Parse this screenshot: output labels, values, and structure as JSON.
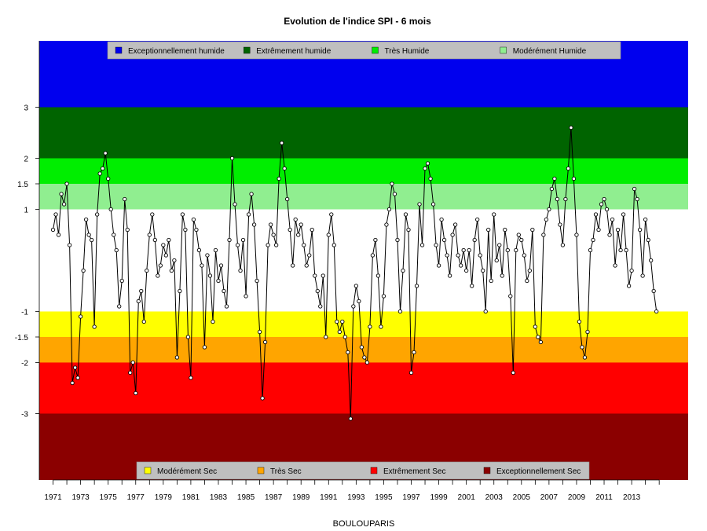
{
  "chart_data": {
    "type": "line",
    "title": "Evolution de l'indice SPI - 6 mois",
    "xlabel": "BOULOUPARIS",
    "ylabel": "",
    "xlim": [
      1970.0,
      2017.1
    ],
    "ylim": [
      -4.3,
      4.3
    ],
    "grid": false,
    "bands": [
      {
        "name": "Exceptionnellement humide",
        "from": 3.0,
        "to": 4.3,
        "color": "#0000EE"
      },
      {
        "name": "Extrêmement humide",
        "from": 2.0,
        "to": 3.0,
        "color": "#006400"
      },
      {
        "name": "Très Humide",
        "from": 1.5,
        "to": 2.0,
        "color": "#00EE00"
      },
      {
        "name": "Modérément Humide",
        "from": 1.0,
        "to": 1.5,
        "color": "#90EE90"
      },
      {
        "name": "",
        "from": -1.0,
        "to": 1.0,
        "color": "#FFFFFF"
      },
      {
        "name": "Modérément Sec",
        "from": -1.5,
        "to": -1.0,
        "color": "#FFFF00"
      },
      {
        "name": "Très Sec",
        "from": -2.0,
        "to": -1.5,
        "color": "#FFA500"
      },
      {
        "name": "Extrêmement Sec",
        "from": -3.0,
        "to": -2.0,
        "color": "#FF0000"
      },
      {
        "name": "Exceptionnellement Sec",
        "from": -4.3,
        "to": -3.0,
        "color": "#8B0000"
      }
    ],
    "legend_top": {
      "placement": "top",
      "entries": [
        {
          "label": "Exceptionnellement humide",
          "color": "#0000EE"
        },
        {
          "label": "Extrêmement humide",
          "color": "#006400"
        },
        {
          "label": "Très Humide",
          "color": "#00EE00"
        },
        {
          "label": "Modérément Humide",
          "color": "#90EE90"
        }
      ]
    },
    "legend_bottom": {
      "placement": "bottom",
      "entries": [
        {
          "label": "Modérément Sec",
          "color": "#FFFF00"
        },
        {
          "label": "Très Sec",
          "color": "#FFA500"
        },
        {
          "label": "Extrêmement Sec",
          "color": "#FF0000"
        },
        {
          "label": "Exceptionnellement Sec",
          "color": "#8B0000"
        }
      ]
    },
    "y_ticks": [
      {
        "value": 3,
        "label": "3"
      },
      {
        "value": 2,
        "label": "2"
      },
      {
        "value": 1.5,
        "label": "1.5"
      },
      {
        "value": 1,
        "label": "1"
      },
      {
        "value": -1,
        "label": "-1"
      },
      {
        "value": -1.5,
        "label": "-1.5"
      },
      {
        "value": -2,
        "label": "-2"
      },
      {
        "value": -3,
        "label": "-3"
      }
    ],
    "x_tick_values": [
      1971,
      1972,
      1973,
      1974,
      1975,
      1976,
      1977,
      1978,
      1979,
      1980,
      1981,
      1982,
      1983,
      1984,
      1985,
      1986,
      1987,
      1988,
      1989,
      1990,
      1991,
      1992,
      1993,
      1994,
      1995,
      1996,
      1997,
      1998,
      1999,
      2000,
      2001,
      2002,
      2003,
      2004,
      2005,
      2006,
      2007,
      2008,
      2009,
      2010,
      2011,
      2012,
      2013,
      2014,
      2015
    ],
    "x_tick_labels": [
      "1971",
      "1973",
      "1975",
      "1977",
      "1979",
      "1981",
      "1983",
      "1985",
      "1987",
      "1989",
      "1991",
      "1993",
      "1995",
      "1997",
      "1999",
      "2001",
      "2003",
      "2005",
      "2007",
      "2009",
      "2011",
      "2013"
    ],
    "series": [
      {
        "name": "",
        "color": "#000000",
        "marker": "open-circle",
        "x": [
          1971.0,
          1971.2,
          1971.4,
          1971.6,
          1971.8,
          1972.0,
          1972.2,
          1972.4,
          1972.6,
          1972.8,
          1973.0,
          1973.2,
          1973.4,
          1973.6,
          1973.8,
          1974.0,
          1974.2,
          1974.4,
          1974.6,
          1974.8,
          1975.0,
          1975.2,
          1975.4,
          1975.6,
          1975.8,
          1976.0,
          1976.2,
          1976.4,
          1976.6,
          1976.8,
          1977.0,
          1977.2,
          1977.4,
          1977.6,
          1977.8,
          1978.0,
          1978.2,
          1978.4,
          1978.6,
          1978.8,
          1979.0,
          1979.2,
          1979.4,
          1979.6,
          1979.8,
          1980.0,
          1980.2,
          1980.4,
          1980.6,
          1980.8,
          1981.0,
          1981.2,
          1981.4,
          1981.6,
          1981.8,
          1982.0,
          1982.2,
          1982.4,
          1982.6,
          1982.8,
          1983.0,
          1983.2,
          1983.4,
          1983.6,
          1983.8,
          1984.0,
          1984.2,
          1984.4,
          1984.6,
          1984.8,
          1985.0,
          1985.2,
          1985.4,
          1985.6,
          1985.8,
          1986.0,
          1986.2,
          1986.4,
          1986.6,
          1986.8,
          1987.0,
          1987.2,
          1987.4,
          1987.6,
          1987.8,
          1988.0,
          1988.2,
          1988.4,
          1988.6,
          1988.8,
          1989.0,
          1989.2,
          1989.4,
          1989.6,
          1989.8,
          1990.0,
          1990.2,
          1990.4,
          1990.6,
          1990.8,
          1991.0,
          1991.2,
          1991.4,
          1991.6,
          1991.8,
          1992.0,
          1992.2,
          1992.4,
          1992.6,
          1992.8,
          1993.0,
          1993.2,
          1993.4,
          1993.6,
          1993.8,
          1994.0,
          1994.2,
          1994.4,
          1994.6,
          1994.8,
          1995.0,
          1995.2,
          1995.4,
          1995.6,
          1995.8,
          1996.0,
          1996.2,
          1996.4,
          1996.6,
          1996.8,
          1997.0,
          1997.2,
          1997.4,
          1997.6,
          1997.8,
          1998.0,
          1998.2,
          1998.4,
          1998.6,
          1998.8,
          1999.0,
          1999.2,
          1999.4,
          1999.6,
          1999.8,
          2000.0,
          2000.2,
          2000.4,
          2000.6,
          2000.8,
          2001.0,
          2001.2,
          2001.4,
          2001.6,
          2001.8,
          2002.0,
          2002.2,
          2002.4,
          2002.6,
          2002.8,
          2003.0,
          2003.2,
          2003.4,
          2003.6,
          2003.8,
          2004.0,
          2004.2,
          2004.4,
          2004.6,
          2004.8,
          2005.0,
          2005.2,
          2005.4,
          2005.6,
          2005.8,
          2006.0,
          2006.2,
          2006.4,
          2006.6,
          2006.8,
          2007.0,
          2007.2,
          2007.4,
          2007.6,
          2007.8,
          2008.0,
          2008.2,
          2008.4,
          2008.6,
          2008.8,
          2009.0,
          2009.2,
          2009.4,
          2009.6,
          2009.8,
          2010.0,
          2010.2,
          2010.4,
          2010.6,
          2010.8,
          2011.0,
          2011.2,
          2011.4,
          2011.6,
          2011.8,
          2012.0,
          2012.2,
          2012.4,
          2012.6,
          2012.8,
          2013.0,
          2013.2,
          2013.4,
          2013.6,
          2013.8,
          2014.0,
          2014.2,
          2014.4,
          2014.6,
          2014.8
        ],
        "y": [
          0.6,
          0.9,
          0.5,
          1.3,
          1.1,
          1.5,
          0.3,
          -2.4,
          -2.1,
          -2.3,
          -1.1,
          -0.2,
          0.8,
          0.5,
          0.4,
          -1.3,
          0.9,
          1.7,
          1.8,
          2.1,
          1.6,
          1.0,
          0.5,
          0.2,
          -0.9,
          -0.4,
          1.2,
          0.6,
          -2.2,
          -2.0,
          -2.6,
          -0.8,
          -0.6,
          -1.2,
          -0.2,
          0.5,
          0.9,
          0.4,
          -0.3,
          -0.1,
          0.3,
          0.1,
          0.4,
          -0.2,
          0.0,
          -1.9,
          -0.6,
          0.9,
          0.6,
          -1.5,
          -2.3,
          0.8,
          0.6,
          0.2,
          -0.1,
          -1.7,
          0.1,
          -0.3,
          -1.2,
          0.2,
          -0.4,
          -0.1,
          -0.6,
          -0.9,
          0.4,
          2.0,
          1.1,
          0.3,
          -0.2,
          0.4,
          -0.7,
          0.9,
          1.3,
          0.7,
          -0.4,
          -1.4,
          -2.7,
          -1.6,
          0.3,
          0.7,
          0.5,
          0.3,
          1.6,
          2.3,
          1.8,
          1.2,
          0.6,
          -0.1,
          0.8,
          0.5,
          0.7,
          0.3,
          -0.1,
          0.1,
          0.6,
          -0.3,
          -0.6,
          -0.9,
          -0.3,
          -1.5,
          0.5,
          0.9,
          0.3,
          -1.2,
          -1.4,
          -1.2,
          -1.5,
          -1.8,
          -3.1,
          -0.9,
          -0.5,
          -0.8,
          -1.7,
          -1.9,
          -2.0,
          -1.3,
          0.1,
          0.4,
          -0.3,
          -1.3,
          -0.7,
          0.7,
          1.0,
          1.5,
          1.3,
          0.4,
          -1.0,
          -0.2,
          0.9,
          0.6,
          -2.2,
          -1.8,
          -0.5,
          1.1,
          0.3,
          1.8,
          1.9,
          1.6,
          1.1,
          0.3,
          -0.1,
          0.8,
          0.4,
          0.1,
          -0.3,
          0.5,
          0.7,
          0.1,
          -0.1,
          0.2,
          -0.2,
          0.2,
          -0.5,
          0.4,
          0.8,
          0.1,
          -0.2,
          -1.0,
          0.6,
          -0.4,
          0.9,
          0.0,
          0.3,
          -0.3,
          0.6,
          0.2,
          -0.7,
          -2.2,
          0.2,
          0.5,
          0.4,
          0.1,
          -0.4,
          -0.2,
          0.6,
          -1.3,
          -1.5,
          -1.6,
          0.5,
          0.8,
          1.0,
          1.4,
          1.6,
          1.2,
          0.7,
          0.3,
          1.2,
          1.8,
          2.6,
          1.6,
          0.5,
          -1.2,
          -1.7,
          -1.9,
          -1.4,
          0.2,
          0.4,
          0.9,
          0.6,
          1.1,
          1.2,
          1.0,
          0.5,
          0.8,
          -0.1,
          0.6,
          0.2,
          0.9,
          0.2,
          -0.5,
          -0.2,
          1.4,
          1.2,
          0.6,
          -0.3,
          0.8,
          0.4,
          0.0,
          -0.6,
          -1.0
        ]
      }
    ]
  }
}
